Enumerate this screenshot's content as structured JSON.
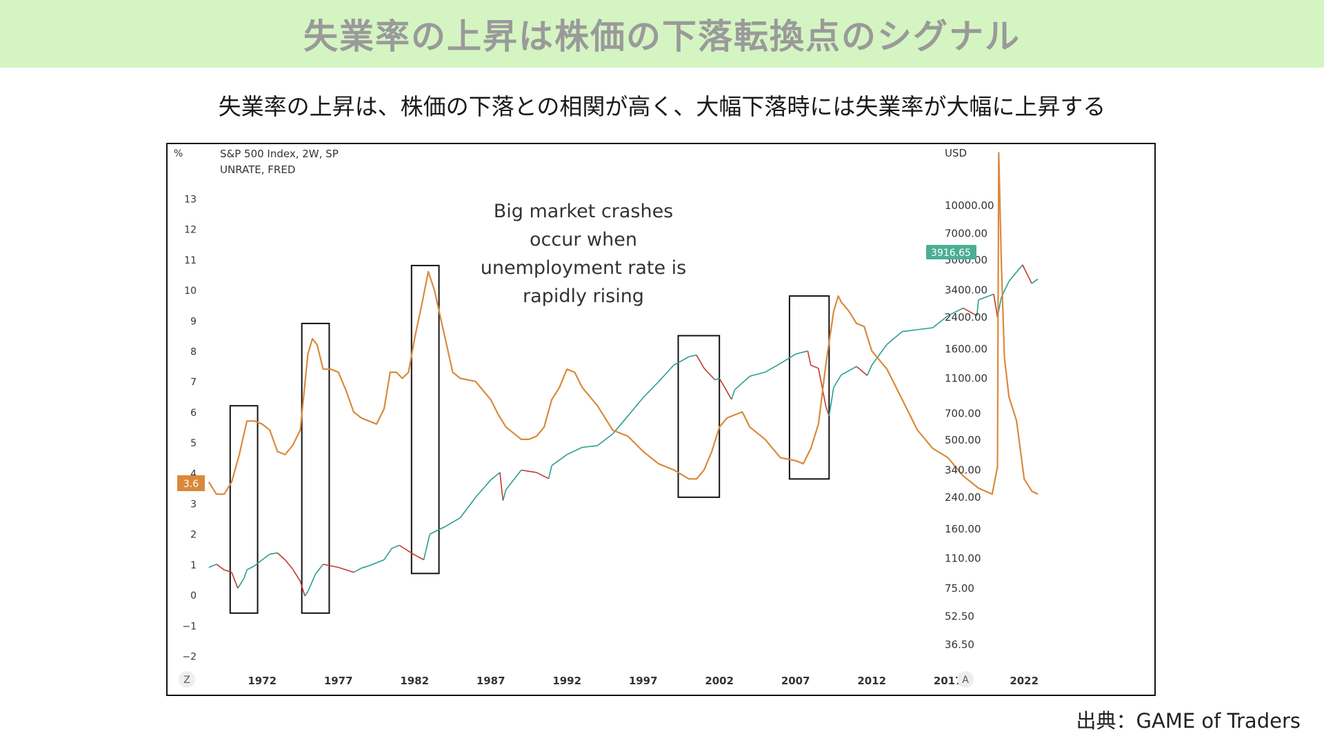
{
  "title": "失業率の上昇は株価の下落転換点のシグナル",
  "subtitle": "失業率の上昇は、株価の下落との相関が高く、大幅下落時には失業率が大幅に上昇する",
  "source": "出典：GAME of Traders",
  "colors": {
    "title_bg": "#d4f5c2",
    "unrate": "#d9893a",
    "sp_up": "#2a9d8f",
    "sp_down": "#c0392b",
    "price_badge": "#4caf95"
  },
  "chart_data": {
    "type": "line",
    "legend": [
      "S&P 500 Index, 2W, SP",
      "UNRATE, FRED"
    ],
    "left_axis": {
      "unit": "%",
      "ticks": [
        "13",
        "12",
        "11",
        "10",
        "9",
        "8",
        "7",
        "6",
        "5",
        "4",
        "3",
        "2",
        "1",
        "0",
        "−1",
        "−2"
      ]
    },
    "right_axis": {
      "unit": "USD",
      "scale": "log",
      "ticks": [
        "10000.00",
        "7000.00",
        "5000.00",
        "3400.00",
        "2400.00",
        "1600.00",
        "1100.00",
        "700.00",
        "500.00",
        "340.00",
        "240.00",
        "160.00",
        "110.00",
        "75.00",
        "52.50",
        "36.50"
      ]
    },
    "x_ticks": [
      "1972",
      "1977",
      "1982",
      "1987",
      "1992",
      "1997",
      "2002",
      "2007",
      "2012",
      "2017",
      "2022"
    ],
    "corner_left": "Z",
    "corner_right": "A",
    "current_unrate_label": "3.6",
    "current_price_label": "3916.65",
    "annotation": [
      "Big market crashes",
      "occur when",
      "unemployment rate is",
      "rapidly rising"
    ],
    "series": [
      {
        "name": "UNRATE, FRED",
        "axis": "left",
        "x": [
          1968.5,
          1969,
          1969.5,
          1970,
          1970.5,
          1971,
          1971.5,
          1972,
          1972.5,
          1973,
          1973.5,
          1974,
          1974.5,
          1975,
          1975.3,
          1975.6,
          1976,
          1976.5,
          1977,
          1977.5,
          1978,
          1978.5,
          1979,
          1979.5,
          1980,
          1980.4,
          1980.8,
          1981.2,
          1981.6,
          1982,
          1982.5,
          1982.9,
          1983.3,
          1983.7,
          1984.5,
          1985,
          1986,
          1987,
          1987.5,
          1988,
          1989,
          1989.5,
          1990,
          1990.5,
          1991,
          1991.5,
          1992,
          1992.5,
          1993,
          1994,
          1995,
          1996,
          1997,
          1998,
          1999,
          2000,
          2000.5,
          2001,
          2001.5,
          2002,
          2002.5,
          2003,
          2003.5,
          2004,
          2005,
          2006,
          2007,
          2007.5,
          2008,
          2008.5,
          2009,
          2009.5,
          2009.8,
          2010,
          2010.5,
          2011,
          2011.5,
          2012,
          2013,
          2014,
          2015,
          2016,
          2017,
          2018,
          2019,
          2019.9,
          2020.25,
          2020.33,
          2020.5,
          2020.7,
          2021,
          2021.5,
          2022,
          2022.5,
          2022.9
        ],
        "y": [
          3.9,
          3.5,
          3.5,
          3.9,
          4.8,
          5.9,
          5.9,
          5.8,
          5.6,
          4.9,
          4.8,
          5.1,
          5.6,
          8.1,
          8.6,
          8.4,
          7.6,
          7.6,
          7.5,
          6.9,
          6.2,
          6.0,
          5.9,
          5.8,
          6.3,
          7.5,
          7.5,
          7.3,
          7.5,
          8.6,
          9.8,
          10.8,
          10.2,
          9.3,
          7.5,
          7.3,
          7.2,
          6.6,
          6.1,
          5.7,
          5.3,
          5.3,
          5.4,
          5.7,
          6.6,
          7.0,
          7.6,
          7.5,
          7.0,
          6.4,
          5.6,
          5.4,
          4.9,
          4.5,
          4.3,
          4.0,
          4.0,
          4.3,
          4.9,
          5.7,
          6.0,
          6.1,
          6.2,
          5.7,
          5.3,
          4.7,
          4.6,
          4.5,
          5.0,
          5.8,
          7.8,
          9.5,
          10.0,
          9.8,
          9.5,
          9.1,
          9.0,
          8.2,
          7.6,
          6.6,
          5.6,
          5.0,
          4.7,
          4.1,
          3.7,
          3.5,
          4.4,
          14.7,
          11.1,
          8.0,
          6.7,
          5.9,
          4.0,
          3.6,
          3.5
        ]
      },
      {
        "name": "S&P 500 Index, 2W, SP",
        "axis": "right",
        "x": [
          1968.5,
          1969,
          1969.5,
          1970,
          1970.4,
          1970.8,
          1971,
          1971.5,
          1972,
          1972.5,
          1973,
          1973.5,
          1974,
          1974.5,
          1974.8,
          1975,
          1975.5,
          1976,
          1977,
          1978,
          1978.5,
          1979,
          1980,
          1980.5,
          1981,
          1982,
          1982.6,
          1983,
          1984,
          1985,
          1986,
          1987,
          1987.6,
          1987.8,
          1988,
          1989,
          1990,
          1990.8,
          1991,
          1992,
          1993,
          1994,
          1995,
          1996,
          1997,
          1998,
          1999,
          2000,
          2000.5,
          2001,
          2001.7,
          2002,
          2002.8,
          2003,
          2004,
          2005,
          2006,
          2007,
          2007.8,
          2008,
          2008.5,
          2009,
          2009.2,
          2009.5,
          2010,
          2011,
          2011.7,
          2012,
          2013,
          2014,
          2015,
          2016,
          2017,
          2018,
          2018.9,
          2019,
          2020,
          2020.25,
          2020.5,
          2021,
          2021.9,
          2022,
          2022.5,
          2022.9
        ],
        "y": [
          98,
          102,
          95,
          92,
          75,
          85,
          95,
          100,
          108,
          116,
          118,
          108,
          96,
          82,
          68,
          72,
          90,
          102,
          98,
          92,
          97,
          100,
          108,
          125,
          130,
          115,
          108,
          150,
          165,
          185,
          240,
          300,
          330,
          230,
          265,
          340,
          330,
          305,
          360,
          415,
          455,
          465,
          540,
          680,
          860,
          1050,
          1300,
          1450,
          1480,
          1250,
          1080,
          1100,
          840,
          950,
          1130,
          1190,
          1330,
          1500,
          1560,
          1300,
          1250,
          760,
          680,
          980,
          1150,
          1280,
          1140,
          1300,
          1700,
          2000,
          2050,
          2100,
          2450,
          2700,
          2450,
          3000,
          3230,
          2400,
          3100,
          3800,
          4700,
          4500,
          3700,
          3916.65
        ]
      }
    ],
    "highlight_boxes": [
      {
        "x_start": 1969.9,
        "x_end": 1971.7,
        "unrate_top": 6.4,
        "unrate_bottom": -0.4
      },
      {
        "x_start": 1974.6,
        "x_end": 1976.4,
        "unrate_top": 9.1,
        "unrate_bottom": -0.4
      },
      {
        "x_start": 1981.8,
        "x_end": 1983.6,
        "unrate_top": 11.0,
        "unrate_bottom": 0.9
      },
      {
        "x_start": 1999.3,
        "x_end": 2002.0,
        "unrate_top": 8.7,
        "unrate_bottom": 3.4
      },
      {
        "x_start": 2006.6,
        "x_end": 2009.2,
        "unrate_top": 10.0,
        "unrate_bottom": 4.0
      }
    ]
  }
}
